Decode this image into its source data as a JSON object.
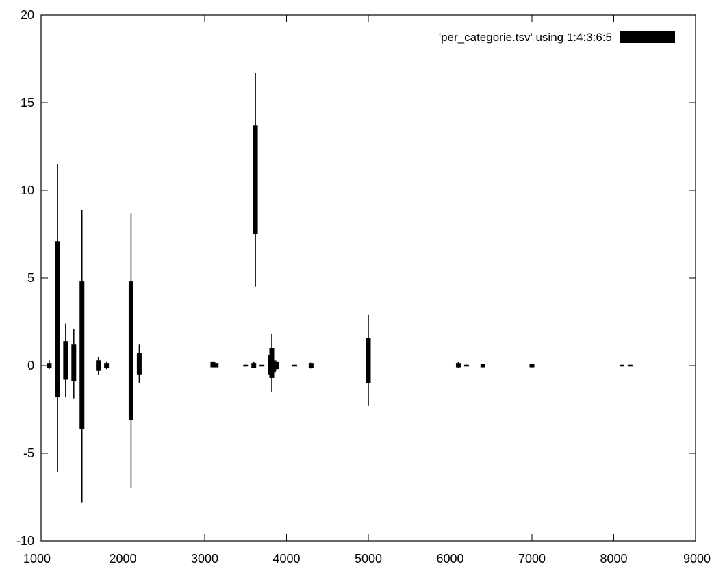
{
  "chart_data": {
    "type": "candlestick",
    "title": "",
    "xlabel": "",
    "ylabel": "",
    "xlim": [
      1000,
      9000
    ],
    "ylim": [
      -10,
      20
    ],
    "x_ticks": [
      1000,
      2000,
      3000,
      4000,
      5000,
      6000,
      7000,
      8000,
      9000
    ],
    "y_ticks": [
      -10,
      -5,
      0,
      5,
      10,
      15,
      20
    ],
    "grid": false,
    "legend_position": "top-right",
    "legend": {
      "label": "'per_categorie.tsv' using 1:4:3:6:5"
    },
    "color": "#000000",
    "boxes": [
      {
        "x": 1100,
        "low": -0.2,
        "box_low": -0.15,
        "box_high": 0.15,
        "high": 0.3
      },
      {
        "x": 1200,
        "low": -6.1,
        "box_low": -1.8,
        "box_high": 7.1,
        "high": 11.5
      },
      {
        "x": 1300,
        "low": -1.8,
        "box_low": -0.8,
        "box_high": 1.4,
        "high": 2.4
      },
      {
        "x": 1400,
        "low": -1.9,
        "box_low": -0.9,
        "box_high": 1.2,
        "high": 2.1
      },
      {
        "x": 1500,
        "low": -7.8,
        "box_low": -3.6,
        "box_high": 4.8,
        "high": 8.9
      },
      {
        "x": 1700,
        "low": -0.5,
        "box_low": -0.3,
        "box_high": 0.3,
        "high": 0.5
      },
      {
        "x": 1800,
        "low": -0.2,
        "box_low": -0.15,
        "box_high": 0.15,
        "high": 0.2
      },
      {
        "x": 2100,
        "low": -7.0,
        "box_low": -3.1,
        "box_high": 4.8,
        "high": 8.7
      },
      {
        "x": 2200,
        "low": -1.0,
        "box_low": -0.5,
        "box_high": 0.7,
        "high": 1.2
      },
      {
        "x": 3100,
        "low": 0.0,
        "box_low": -0.1,
        "box_high": 0.2,
        "high": 0.2
      },
      {
        "x": 3140,
        "low": 0.0,
        "box_low": -0.1,
        "box_high": 0.15,
        "high": 0.15
      },
      {
        "x": 3500,
        "low": -0.05,
        "box_low": -0.05,
        "box_high": 0.05,
        "high": 0.05
      },
      {
        "x": 3600,
        "low": -0.1,
        "box_low": -0.15,
        "box_high": 0.15,
        "high": 0.2
      },
      {
        "x": 3620,
        "low": 4.5,
        "box_low": 7.5,
        "box_high": 13.7,
        "high": 16.7
      },
      {
        "x": 3700,
        "low": -0.05,
        "box_low": -0.05,
        "box_high": 0.05,
        "high": 0.05
      },
      {
        "x": 3800,
        "low": -0.7,
        "box_low": -0.5,
        "box_high": 0.6,
        "high": 0.9
      },
      {
        "x": 3820,
        "low": -1.5,
        "box_low": -0.7,
        "box_high": 1.0,
        "high": 1.8
      },
      {
        "x": 3840,
        "low": -0.7,
        "box_low": -0.4,
        "box_high": 0.3,
        "high": 1.0
      },
      {
        "x": 3880,
        "low": -0.3,
        "box_low": -0.2,
        "box_high": 0.2,
        "high": 0.3
      },
      {
        "x": 4100,
        "low": -0.05,
        "box_low": -0.05,
        "box_high": 0.05,
        "high": 0.05
      },
      {
        "x": 4300,
        "low": -0.2,
        "box_low": -0.15,
        "box_high": 0.15,
        "high": 0.2
      },
      {
        "x": 5000,
        "low": -2.3,
        "box_low": -1.0,
        "box_high": 1.6,
        "high": 2.9
      },
      {
        "x": 6100,
        "low": -0.15,
        "box_low": -0.1,
        "box_high": 0.15,
        "high": 0.2
      },
      {
        "x": 6200,
        "low": -0.05,
        "box_low": -0.05,
        "box_high": 0.05,
        "high": 0.05
      },
      {
        "x": 6400,
        "low": -0.1,
        "box_low": -0.1,
        "box_high": 0.1,
        "high": 0.1
      },
      {
        "x": 7000,
        "low": -0.1,
        "box_low": -0.1,
        "box_high": 0.1,
        "high": 0.1
      },
      {
        "x": 8100,
        "low": -0.05,
        "box_low": -0.05,
        "box_high": 0.05,
        "high": 0.05
      },
      {
        "x": 8200,
        "low": -0.05,
        "box_low": -0.05,
        "box_high": 0.05,
        "high": 0.05
      }
    ]
  }
}
